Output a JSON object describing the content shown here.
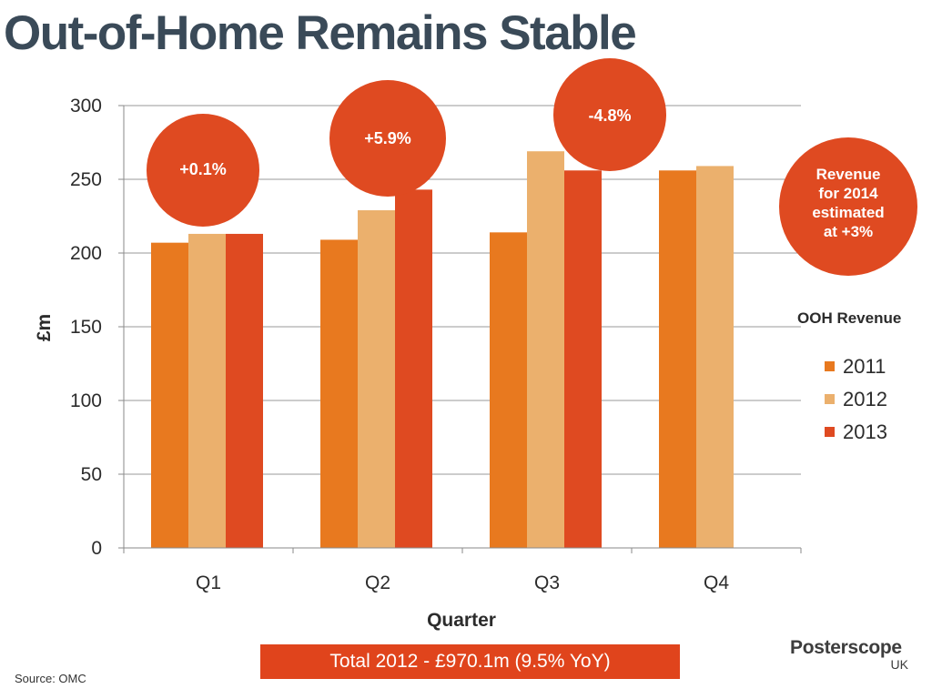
{
  "title": "Out-of-Home Remains Stable",
  "chart_data": {
    "type": "bar",
    "categories": [
      "Q1",
      "Q2",
      "Q3",
      "Q4"
    ],
    "series": [
      {
        "name": "2011",
        "color": "#e8791f",
        "values": [
          207,
          209,
          214,
          256
        ]
      },
      {
        "name": "2012",
        "color": "#ebb06d",
        "values": [
          213,
          229,
          269,
          259
        ]
      },
      {
        "name": "2013",
        "color": "#df4a21",
        "values": [
          213,
          243,
          256,
          null
        ]
      }
    ],
    "xlabel": "Quarter",
    "ylabel": "£m",
    "ylim": [
      0,
      300
    ],
    "yticks": [
      0,
      50,
      100,
      150,
      200,
      250,
      300
    ],
    "grid": true,
    "legend_title": "OOH Revenue",
    "legend_position": "right",
    "annotations": [
      {
        "text": "+0.1%",
        "category": "Q1",
        "color": "#df4a21"
      },
      {
        "text": "+5.9%",
        "category": "Q2",
        "color": "#df4a21"
      },
      {
        "text": "-4.8%",
        "category": "Q3",
        "color": "#df4a21"
      },
      {
        "text": "Revenue for 2014 estimated at +3%",
        "lines": [
          "Revenue",
          "for 2014",
          "estimated",
          "at +3%"
        ],
        "color": "#df4a21"
      }
    ]
  },
  "footer": {
    "total_text": "Total 2012 - £970.1m (9.5% YoY)",
    "source": "Source:  OMC"
  },
  "logo": {
    "name": "Posterscope",
    "sub": "UK"
  }
}
